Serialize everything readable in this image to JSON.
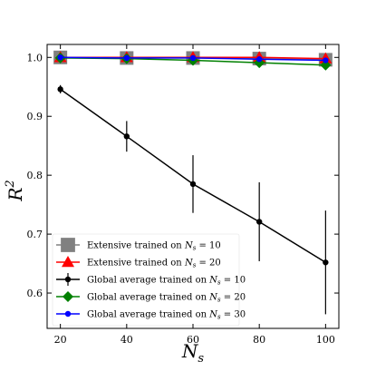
{
  "chart_data": {
    "type": "line",
    "xlabel": "N_s",
    "ylabel": "R^2",
    "xlim": [
      16,
      104
    ],
    "ylim": [
      0.54,
      1.022
    ],
    "xticks": [
      20,
      40,
      60,
      80,
      100
    ],
    "yticks": [
      0.6,
      0.7,
      0.8,
      0.9,
      1.0
    ],
    "xtick_labels": [
      "20",
      "40",
      "60",
      "80",
      "100"
    ],
    "ytick_labels": [
      "0.6",
      "0.7",
      "0.8",
      "0.9",
      "1.0"
    ],
    "grid": false,
    "legend_position": "lower-left",
    "series": [
      {
        "name": "Extensive trained on N_s = 10",
        "legend_prefix": "Extensive trained on ",
        "legend_math": "N",
        "legend_sub": "s",
        "legend_value": " = 10",
        "color": "#808080",
        "marker": "square",
        "x": [
          20,
          40,
          60,
          80,
          100
        ],
        "y": [
          1.0,
          0.999,
          0.999,
          0.998,
          0.996
        ],
        "err": [
          0,
          0,
          0,
          0,
          0
        ]
      },
      {
        "name": "Extensive trained on N_s = 20",
        "legend_prefix": "Extensive trained on ",
        "legend_math": "N",
        "legend_sub": "s",
        "legend_value": " = 20",
        "color": "#ff0000",
        "marker": "triangle",
        "x": [
          20,
          40,
          60,
          80,
          100
        ],
        "y": [
          1.0,
          1.0,
          1.0,
          1.0,
          0.998
        ],
        "err": [
          0,
          0,
          0,
          0,
          0
        ]
      },
      {
        "name": "Global average trained on N_s = 10",
        "legend_prefix": "Global average trained on ",
        "legend_math": "N",
        "legend_sub": "s",
        "legend_value": " = 10",
        "color": "#000000",
        "marker": "dot",
        "x": [
          20,
          40,
          60,
          80,
          100
        ],
        "y": [
          0.946,
          0.866,
          0.785,
          0.721,
          0.652
        ],
        "err": [
          0.007,
          0.026,
          0.049,
          0.067,
          0.088
        ]
      },
      {
        "name": "Global average trained on N_s = 20",
        "legend_prefix": "Global average trained on ",
        "legend_math": "N",
        "legend_sub": "s",
        "legend_value": " = 20",
        "color": "#008000",
        "marker": "diamond",
        "x": [
          20,
          40,
          60,
          80,
          100
        ],
        "y": [
          0.999,
          0.998,
          0.995,
          0.991,
          0.987
        ],
        "err": [
          0,
          0,
          0,
          0,
          0
        ]
      },
      {
        "name": "Global average trained on N_s = 30",
        "legend_prefix": "Global average trained on ",
        "legend_math": "N",
        "legend_sub": "s",
        "legend_value": " = 30",
        "color": "#0000ff",
        "marker": "dot",
        "x": [
          20,
          40,
          60,
          80,
          100
        ],
        "y": [
          1.0,
          0.999,
          0.999,
          0.997,
          0.995
        ],
        "err": [
          0,
          0,
          0,
          0,
          0
        ]
      }
    ]
  }
}
